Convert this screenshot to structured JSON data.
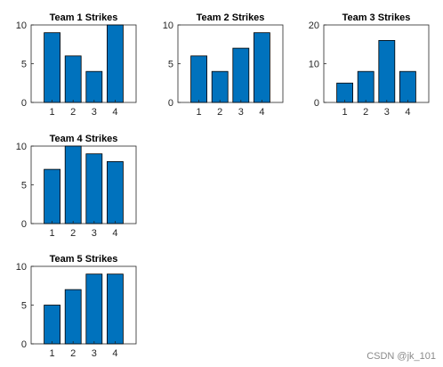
{
  "chart_data": [
    {
      "type": "bar",
      "title": "Team 1 Strikes",
      "categories": [
        "1",
        "2",
        "3",
        "4"
      ],
      "values": [
        9,
        6,
        4,
        10
      ],
      "ylim": [
        0,
        10
      ],
      "yticks": [
        0,
        5,
        10
      ],
      "bar_color": "#0072BD",
      "grid": false
    },
    {
      "type": "bar",
      "title": "Team 2 Strikes",
      "categories": [
        "1",
        "2",
        "3",
        "4"
      ],
      "values": [
        6,
        4,
        7,
        9
      ],
      "ylim": [
        0,
        10
      ],
      "yticks": [
        0,
        5,
        10
      ],
      "bar_color": "#0072BD",
      "grid": false
    },
    {
      "type": "bar",
      "title": "Team 3 Strikes",
      "categories": [
        "1",
        "2",
        "3",
        "4"
      ],
      "values": [
        5,
        8,
        16,
        8
      ],
      "ylim": [
        0,
        20
      ],
      "yticks": [
        0,
        10,
        20
      ],
      "bar_color": "#0072BD",
      "grid": false
    },
    {
      "type": "bar",
      "title": "Team 4 Strikes",
      "categories": [
        "1",
        "2",
        "3",
        "4"
      ],
      "values": [
        7,
        10,
        9,
        8
      ],
      "ylim": [
        0,
        10
      ],
      "yticks": [
        0,
        5,
        10
      ],
      "bar_color": "#0072BD",
      "grid": false
    },
    {
      "type": "bar",
      "title": "Team 5 Strikes",
      "categories": [
        "1",
        "2",
        "3",
        "4"
      ],
      "values": [
        5,
        7,
        9,
        9
      ],
      "ylim": [
        0,
        10
      ],
      "yticks": [
        0,
        5,
        10
      ],
      "bar_color": "#0072BD",
      "grid": false
    }
  ],
  "watermark": "CSDN @jk_101"
}
